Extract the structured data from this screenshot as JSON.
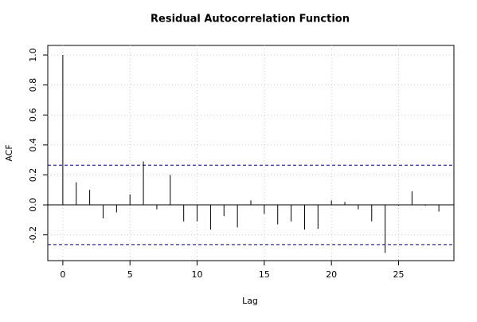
{
  "chart_data": {
    "type": "acf",
    "title": "Residual Autocorrelation Function",
    "x_label": "Lag",
    "y_label": "ACF",
    "x": [
      0,
      1,
      2,
      3,
      4,
      5,
      6,
      7,
      8,
      9,
      10,
      11,
      12,
      13,
      14,
      15,
      16,
      17,
      18,
      19,
      20,
      21,
      22,
      23,
      24,
      25,
      26,
      27,
      28
    ],
    "values": [
      1.0,
      0.15,
      0.1,
      -0.09,
      -0.05,
      0.07,
      0.29,
      -0.03,
      0.2,
      -0.11,
      -0.11,
      -0.165,
      -0.075,
      -0.15,
      0.03,
      -0.06,
      -0.13,
      -0.11,
      -0.165,
      -0.16,
      0.03,
      0.02,
      -0.03,
      -0.11,
      -0.32,
      -0.005,
      0.09,
      -0.005,
      -0.045
    ],
    "color": "#000000",
    "ci_lines": [
      0.265,
      -0.265
    ],
    "ci_color": "#00008b",
    "xlim": [
      -1.12,
      29.12
    ],
    "ylim": [
      -0.372,
      1.064
    ],
    "xticks": [
      0,
      5,
      10,
      15,
      20,
      25
    ],
    "yticks": [
      -0.2,
      {
        "value": 0,
        "label": "0.0"
      },
      0.2,
      0.4,
      0.6,
      0.8,
      {
        "value": 1,
        "label": "1.0"
      }
    ],
    "grid": true
  }
}
